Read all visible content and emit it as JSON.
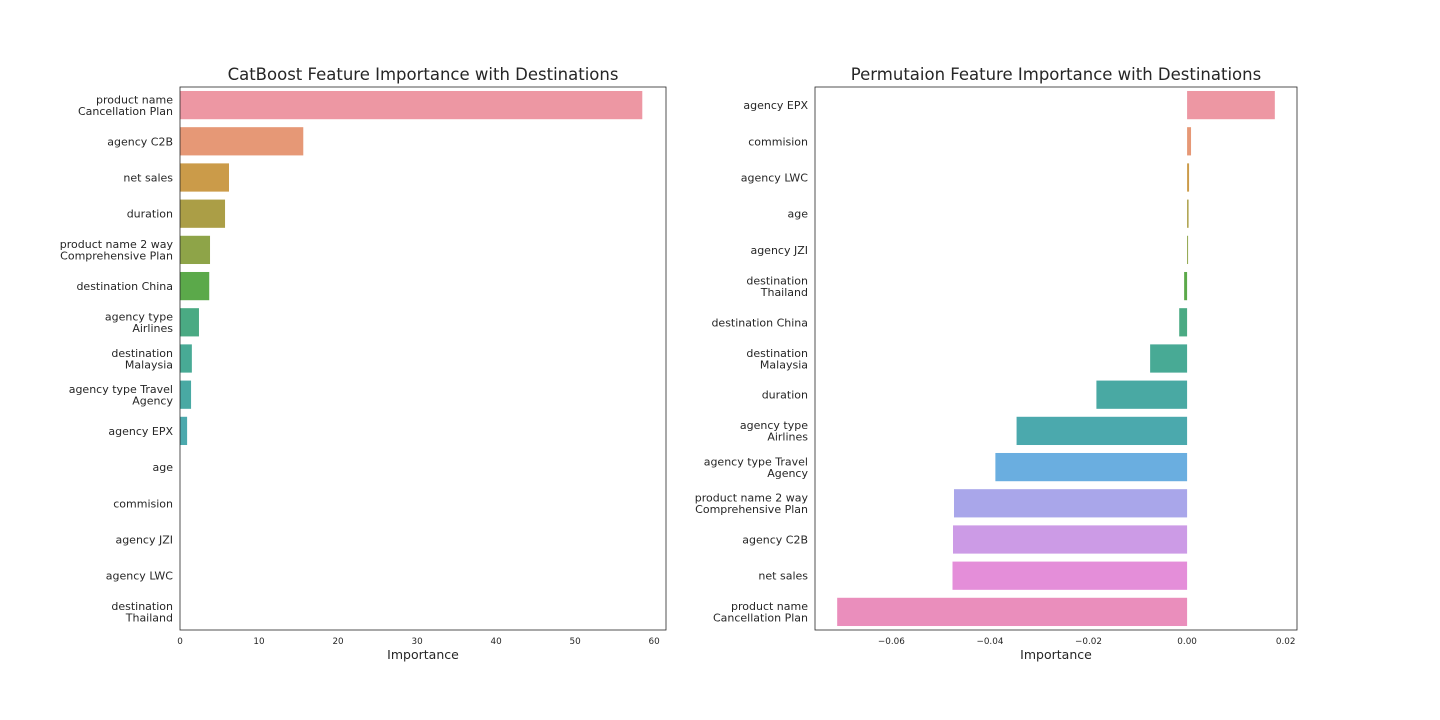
{
  "chart_data": [
    {
      "type": "bar",
      "orientation": "horizontal",
      "title": "CatBoost Feature Importance with Destinations",
      "xlabel": "Importance",
      "ylabel": "",
      "categories": [
        "product name\nCancellation Plan",
        "agency C2B",
        "net sales",
        "duration",
        "product name 2 way\nComprehensive Plan",
        "destination China",
        "agency type\nAirlines",
        "destination\nMalaysia",
        "agency type Travel\nAgency",
        "agency EPX",
        "age",
        "commision",
        "agency JZI",
        "agency LWC",
        "destination\nThailand"
      ],
      "values": [
        58.5,
        15.6,
        6.2,
        5.7,
        3.8,
        3.7,
        2.4,
        1.5,
        1.4,
        0.9,
        0.0,
        0.0,
        0.0,
        0.0,
        0.0
      ],
      "colors": [
        "#ed97a3",
        "#e69876",
        "#cb9b49",
        "#ab9e46",
        "#8ea448",
        "#5ba94a",
        "#4aaa83",
        "#48aa95",
        "#49a9a3",
        "#4ba9ad",
        "#6aaee0",
        "#a9a6ea",
        "#cc9be6",
        "#e48ed9",
        "#ea8ebc"
      ],
      "xticks": [
        0,
        10,
        20,
        30,
        40,
        50,
        60
      ],
      "xlim": [
        0,
        61.5
      ],
      "grid": false
    },
    {
      "type": "bar",
      "orientation": "horizontal",
      "title": "Permutaion Feature Importance with Destinations",
      "xlabel": "Importance",
      "ylabel": "",
      "categories": [
        "agency EPX",
        "commision",
        "agency LWC",
        "age",
        "agency JZI",
        "destination\nThailand",
        "destination China",
        "destination\nMalaysia",
        "duration",
        "agency type\nAirlines",
        "agency type Travel\nAgency",
        "product name 2 way\nComprehensive Plan",
        "agency C2B",
        "net sales",
        "product name\nCancellation Plan"
      ],
      "values": [
        0.0178,
        0.0008,
        0.0004,
        0.0003,
        0.0002,
        -0.0006,
        -0.0016,
        -0.0075,
        -0.0184,
        -0.0346,
        -0.0389,
        -0.0473,
        -0.0475,
        -0.0476,
        -0.071
      ],
      "colors": [
        "#ed97a3",
        "#e69876",
        "#cb9b49",
        "#ab9e46",
        "#8ea448",
        "#5ba94a",
        "#4aaa83",
        "#48aa95",
        "#49a9a3",
        "#4ba9ad",
        "#6aaee0",
        "#a9a6ea",
        "#cc9be6",
        "#e48ed9",
        "#ea8ebc"
      ],
      "xticks": [
        -0.06,
        -0.04,
        -0.02,
        0.0,
        0.02
      ],
      "xtick_labels": [
        "−0.06",
        "−0.04",
        "−0.02",
        "0.00",
        "0.02"
      ],
      "xlim": [
        -0.0755,
        0.0223
      ],
      "grid": false
    }
  ]
}
